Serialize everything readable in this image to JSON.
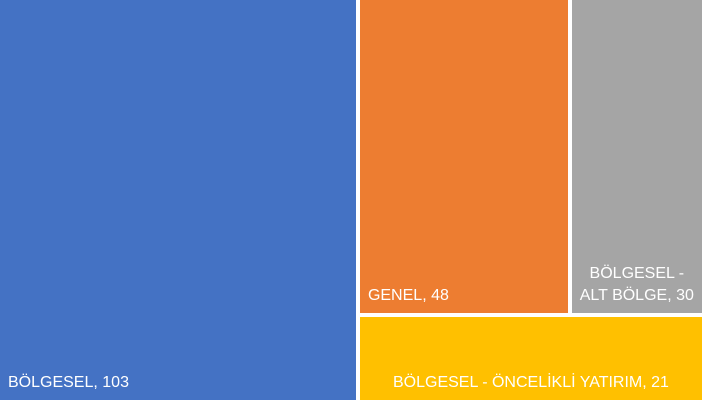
{
  "chart_data": {
    "type": "treemap",
    "categories": [
      "BÖLGESEL",
      "GENEL",
      "BÖLGESEL - ALT BÖLGE",
      "BÖLGESEL - ÖNCELİKLİ YATIRIM"
    ],
    "values": [
      103,
      48,
      30,
      21
    ],
    "separator": ", ",
    "colors": [
      "#4472c4",
      "#ed7d31",
      "#a5a5a5",
      "#ffc000"
    ]
  }
}
